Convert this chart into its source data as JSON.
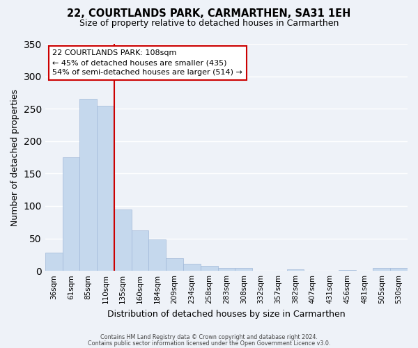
{
  "title": "22, COURTLANDS PARK, CARMARTHEN, SA31 1EH",
  "subtitle": "Size of property relative to detached houses in Carmarthen",
  "xlabel": "Distribution of detached houses by size in Carmarthen",
  "ylabel": "Number of detached properties",
  "footer_line1": "Contains HM Land Registry data © Crown copyright and database right 2024.",
  "footer_line2": "Contains public sector information licensed under the Open Government Licence v3.0.",
  "bin_labels": [
    "36sqm",
    "61sqm",
    "85sqm",
    "110sqm",
    "135sqm",
    "160sqm",
    "184sqm",
    "209sqm",
    "234sqm",
    "258sqm",
    "283sqm",
    "308sqm",
    "332sqm",
    "357sqm",
    "382sqm",
    "407sqm",
    "431sqm",
    "456sqm",
    "481sqm",
    "505sqm",
    "530sqm"
  ],
  "bar_values": [
    28,
    175,
    265,
    255,
    95,
    62,
    48,
    20,
    11,
    8,
    5,
    4,
    0,
    0,
    2,
    0,
    0,
    1,
    0,
    4,
    4
  ],
  "bar_color": "#c5d8ed",
  "bar_edge_color": "#a0b8d8",
  "vline_pos": 3.5,
  "vline_color": "#cc0000",
  "ylim": [
    0,
    350
  ],
  "yticks": [
    0,
    50,
    100,
    150,
    200,
    250,
    300,
    350
  ],
  "annotation_title": "22 COURTLANDS PARK: 108sqm",
  "annotation_line1": "← 45% of detached houses are smaller (435)",
  "annotation_line2": "54% of semi-detached houses are larger (514) →",
  "annotation_box_color": "#ffffff",
  "annotation_box_edge": "#cc0000",
  "background_color": "#eef2f8"
}
